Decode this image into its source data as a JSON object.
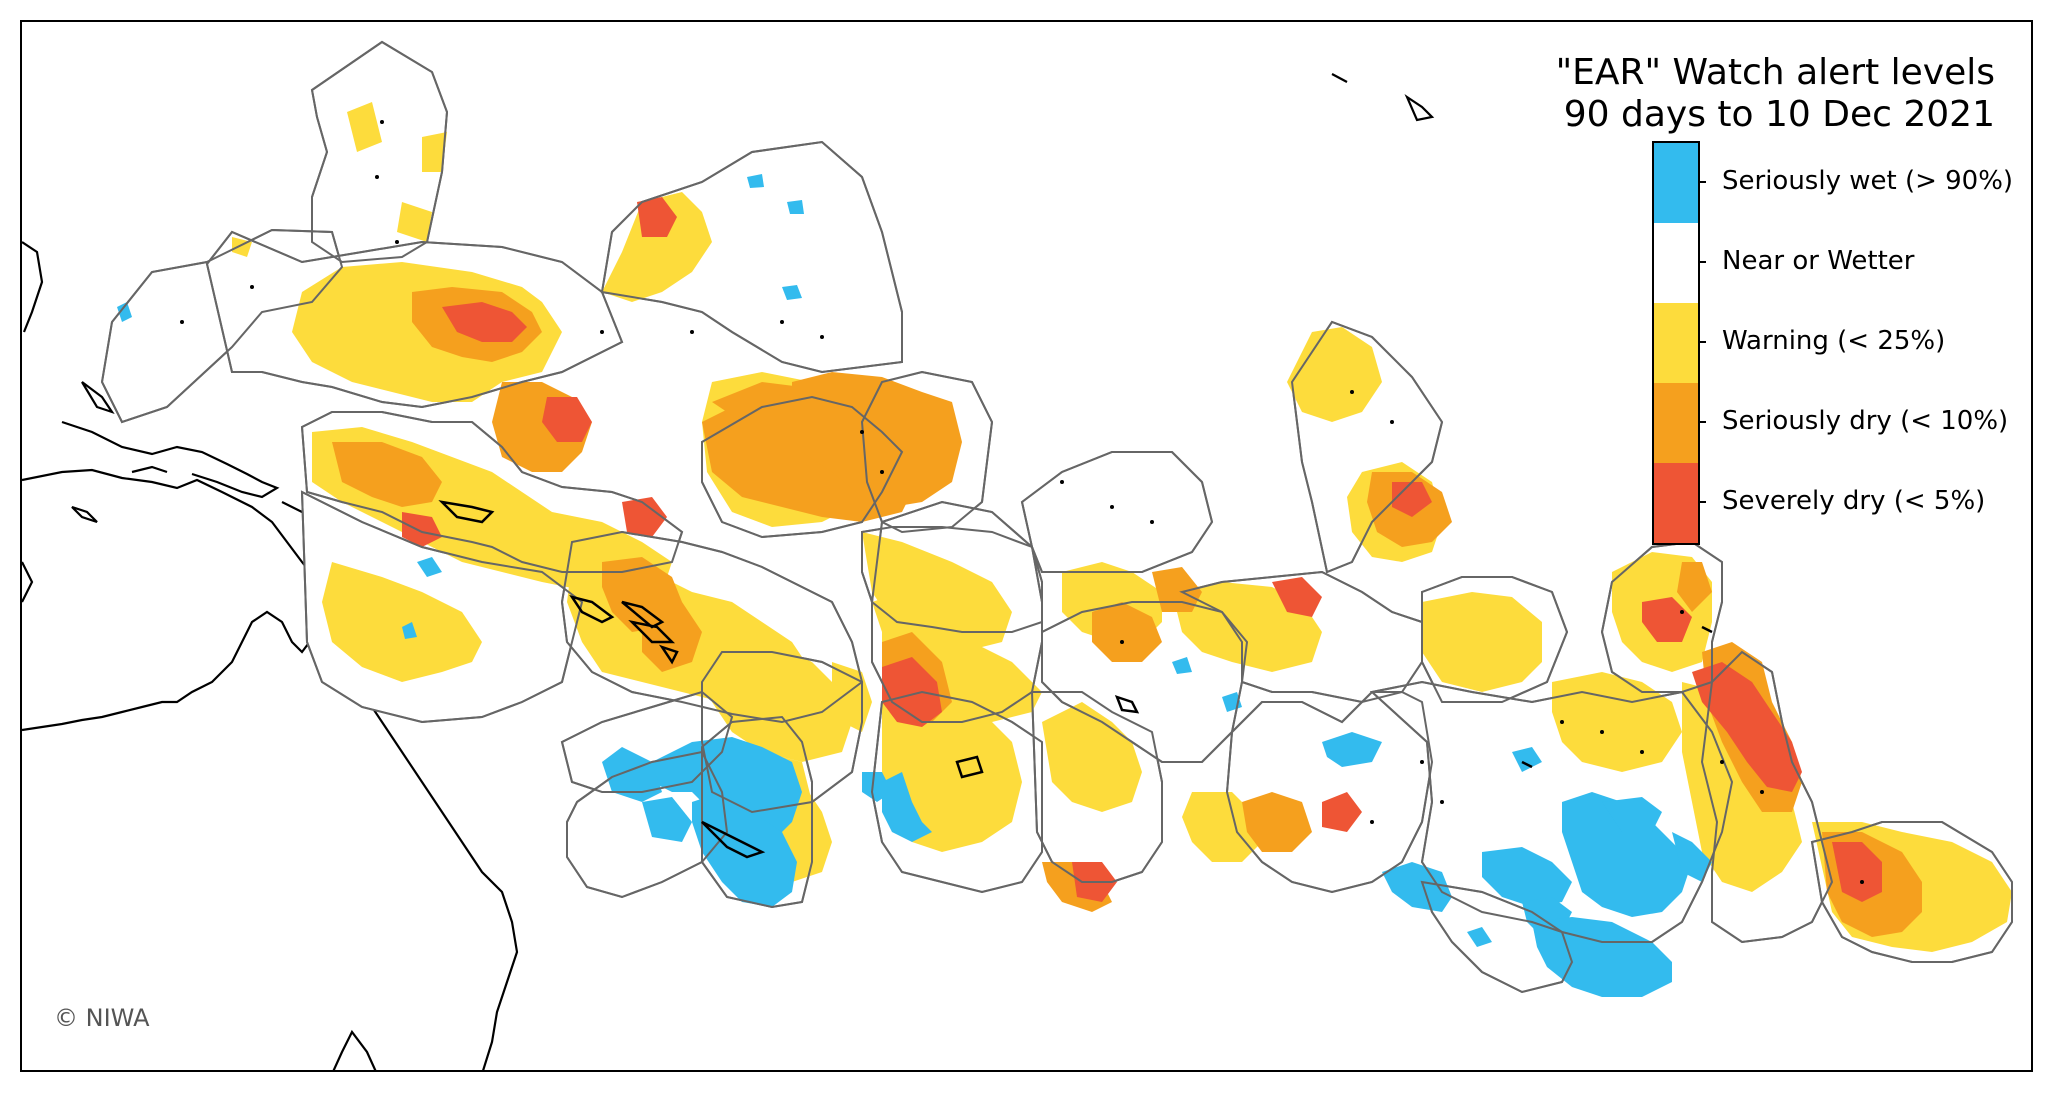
{
  "title": {
    "line1": "\"EAR\" Watch alert levels",
    "line2": "90 days to 10 Dec 2021"
  },
  "legend": {
    "items": [
      {
        "label": "Seriously wet (> 90%)",
        "color": "#33bbee"
      },
      {
        "label": "Near or Wetter",
        "color": "#ffffff"
      },
      {
        "label": "Warning (< 25%)",
        "color": "#fddc3c"
      },
      {
        "label": "Seriously dry (< 10%)",
        "color": "#f5a01e"
      },
      {
        "label": "Severely dry (< 5%)",
        "color": "#ee5535"
      }
    ]
  },
  "credit": "© NIWA",
  "colors": {
    "wet": "#33bbee",
    "warning": "#fddc3c",
    "dry": "#f5a01e",
    "severe": "#ee5535",
    "region_border": "#666666",
    "coast": "#000000"
  }
}
